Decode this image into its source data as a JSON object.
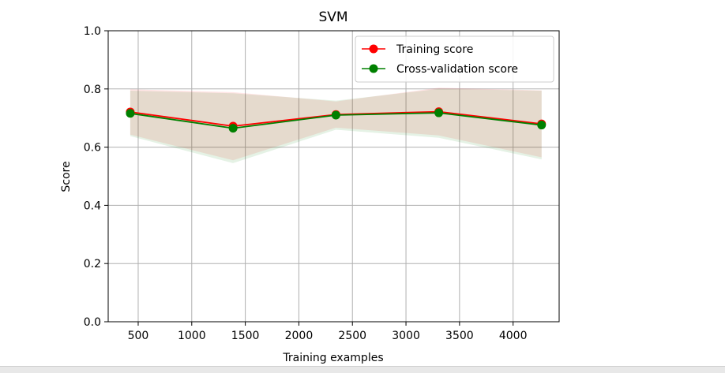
{
  "chart_data": {
    "type": "line",
    "title": "SVM",
    "xlabel": "Training examples",
    "ylabel": "Score",
    "xlim": [
      220,
      4430
    ],
    "ylim": [
      0.0,
      1.0
    ],
    "xticks": [
      500,
      1000,
      1500,
      2000,
      2500,
      3000,
      3500,
      4000
    ],
    "yticks": [
      0.0,
      0.2,
      0.4,
      0.6,
      0.8,
      1.0
    ],
    "ytick_labels": [
      "0.0",
      "0.2",
      "0.4",
      "0.6",
      "0.8",
      "1.0"
    ],
    "grid": true,
    "legend_position": "upper right",
    "x": [
      426,
      1386,
      2346,
      3306,
      4266
    ],
    "series": [
      {
        "name": "Training score",
        "color": "#ff0000",
        "values": [
          0.721,
          0.672,
          0.712,
          0.722,
          0.68
        ],
        "band_lower": [
          0.643,
          0.555,
          0.667,
          0.64,
          0.565
        ],
        "band_upper": [
          0.799,
          0.789,
          0.757,
          0.804,
          0.795
        ]
      },
      {
        "name": "Cross-validation score",
        "color": "#008000",
        "values": [
          0.716,
          0.665,
          0.71,
          0.718,
          0.676
        ],
        "band_lower": [
          0.638,
          0.545,
          0.66,
          0.632,
          0.558
        ],
        "band_upper": [
          0.794,
          0.785,
          0.76,
          0.8,
          0.794
        ]
      }
    ]
  }
}
